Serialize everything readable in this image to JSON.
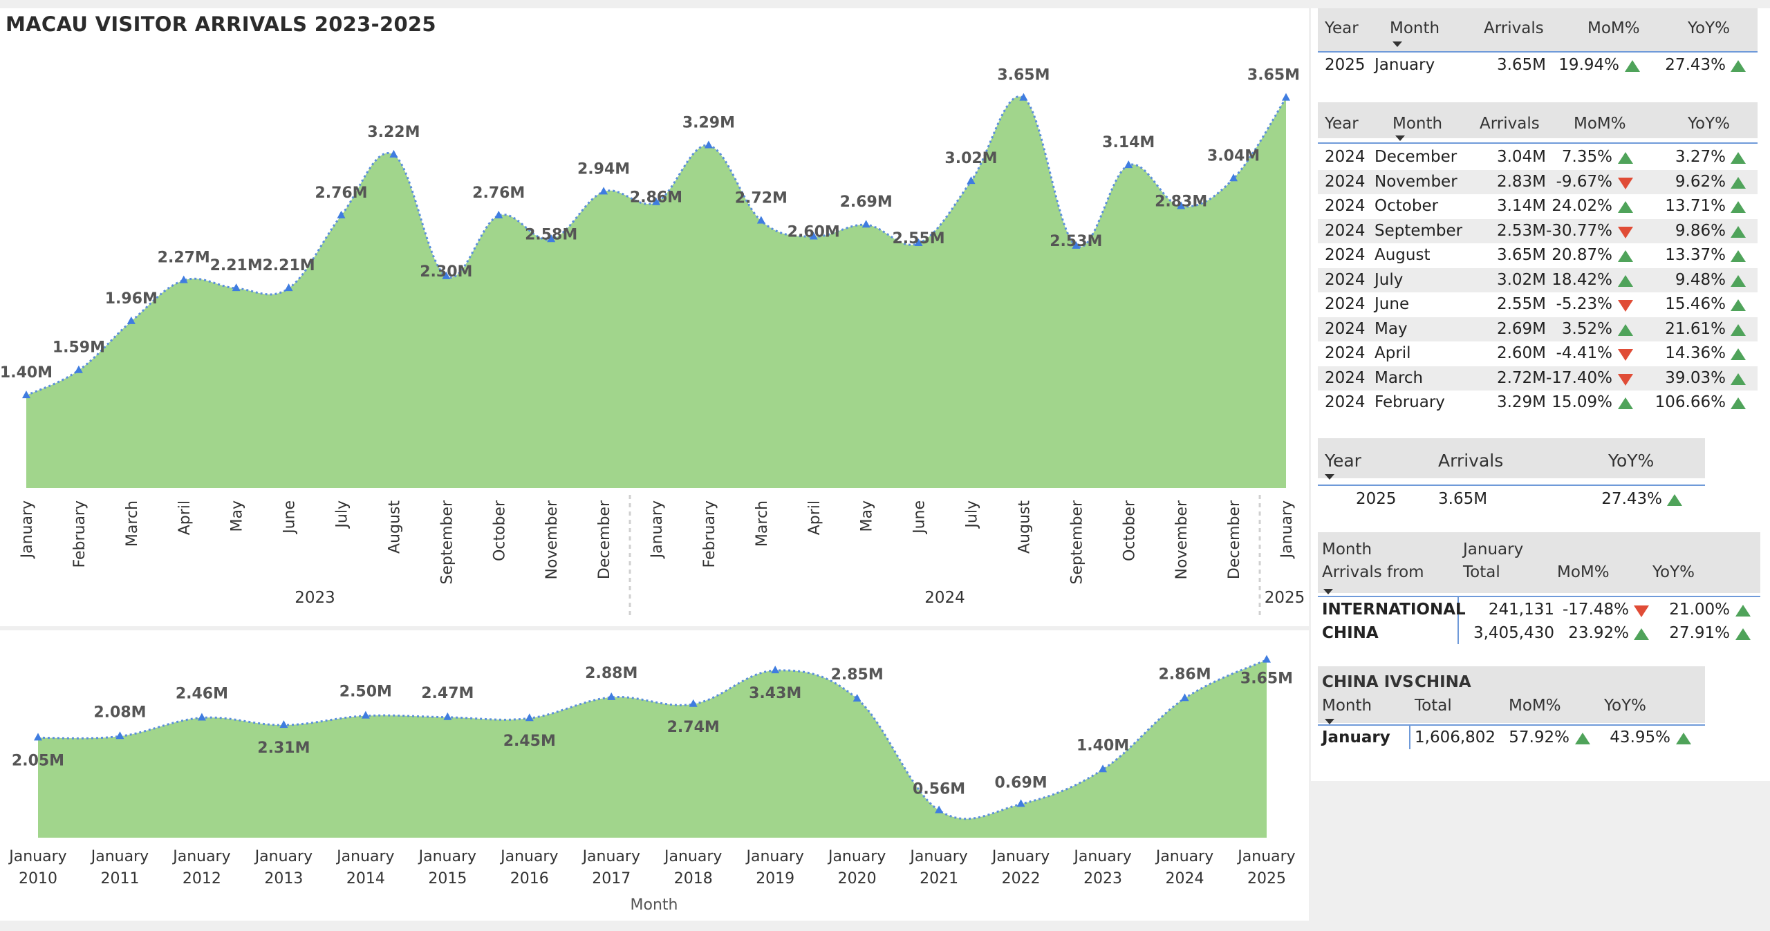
{
  "title": "MACAU VISITOR ARRIVALS 2023-2025",
  "colors": {
    "area": "#a1d58c",
    "line": "#5b8fdc",
    "marker": "#3f7ce0",
    "up": "#4fa35a",
    "down": "#e04c36",
    "header_rule": "#6f9ad9"
  },
  "chart_data": [
    {
      "type": "area",
      "title": "",
      "x": [
        "January",
        "February",
        "March",
        "April",
        "May",
        "June",
        "July",
        "August",
        "September",
        "October",
        "November",
        "December",
        "January",
        "February",
        "March",
        "April",
        "May",
        "June",
        "July",
        "August",
        "September",
        "October",
        "November",
        "December",
        "January"
      ],
      "year_groups": [
        {
          "label": "2023",
          "start": 0,
          "end": 11
        },
        {
          "label": "2024",
          "start": 12,
          "end": 23
        },
        {
          "label": "2025",
          "start": 24,
          "end": 24
        }
      ],
      "values": [
        1.4,
        1.59,
        1.96,
        2.27,
        2.21,
        2.21,
        2.76,
        3.22,
        2.3,
        2.76,
        2.58,
        2.94,
        2.86,
        3.29,
        2.72,
        2.6,
        2.69,
        2.55,
        3.02,
        3.65,
        2.53,
        3.14,
        2.83,
        3.04,
        3.65
      ],
      "data_labels": [
        "1.40M",
        "1.59M",
        "1.96M",
        "2.27M",
        "2.21M",
        "2.21M",
        "2.76M",
        "3.22M",
        "2.30M",
        "2.76M",
        "2.58M",
        "2.94M",
        "2.86M",
        "3.29M",
        "2.72M",
        "2.60M",
        "2.69M",
        "2.55M",
        "3.02M",
        "3.65M",
        "2.53M",
        "3.14M",
        "2.83M",
        "3.04M",
        "3.65M"
      ],
      "unit": "M",
      "ylim": [
        0.7,
        3.7
      ],
      "grid": false,
      "legend": "none"
    },
    {
      "type": "area",
      "title": "",
      "x": [
        "January 2010",
        "January 2011",
        "January 2012",
        "January 2013",
        "January 2014",
        "January 2015",
        "January 2016",
        "January 2017",
        "January 2018",
        "January 2019",
        "January 2020",
        "January 2021",
        "January 2022",
        "January 2023",
        "January 2024",
        "January 2025"
      ],
      "x_line1": [
        "January",
        "January",
        "January",
        "January",
        "January",
        "January",
        "January",
        "January",
        "January",
        "January",
        "January",
        "January",
        "January",
        "January",
        "January",
        "January"
      ],
      "x_line2": [
        "2010",
        "2011",
        "2012",
        "2013",
        "2014",
        "2015",
        "2016",
        "2017",
        "2018",
        "2019",
        "2020",
        "2021",
        "2022",
        "2023",
        "2024",
        "2025"
      ],
      "values": [
        2.05,
        2.08,
        2.46,
        2.31,
        2.5,
        2.47,
        2.45,
        2.88,
        2.74,
        3.43,
        2.85,
        0.56,
        0.69,
        1.4,
        2.86,
        3.65
      ],
      "data_labels": [
        "2.05M",
        "2.08M",
        "2.46M",
        "2.31M",
        "2.50M",
        "2.47M",
        "2.45M",
        "2.88M",
        "2.74M",
        "3.43M",
        "2.85M",
        "0.56M",
        "0.69M",
        "1.40M",
        "2.86M",
        "3.65M"
      ],
      "unit": "M",
      "xlabel": "Month",
      "ylim": [
        0,
        3.8
      ],
      "grid": false,
      "legend": "none"
    }
  ],
  "table_current": {
    "headers": {
      "year": "Year",
      "month": "Month",
      "arrivals": "Arrivals",
      "mom": "MoM%",
      "yoy": "YoY%"
    },
    "rows": [
      {
        "year": "2025",
        "month": "January",
        "arrivals": "3.65M",
        "mom": "19.94%",
        "mom_dir": "up",
        "yoy": "27.43%",
        "yoy_dir": "up"
      }
    ]
  },
  "table_2024": {
    "headers": {
      "year": "Year",
      "month": "Month",
      "arrivals": "Arrivals",
      "mom": "MoM%",
      "yoy": "YoY%"
    },
    "rows": [
      {
        "year": "2024",
        "month": "December",
        "arrivals": "3.04M",
        "mom": "7.35%",
        "mom_dir": "up",
        "yoy": "3.27%",
        "yoy_dir": "up"
      },
      {
        "year": "2024",
        "month": "November",
        "arrivals": "2.83M",
        "mom": "-9.67%",
        "mom_dir": "down",
        "yoy": "9.62%",
        "yoy_dir": "up"
      },
      {
        "year": "2024",
        "month": "October",
        "arrivals": "3.14M",
        "mom": "24.02%",
        "mom_dir": "up",
        "yoy": "13.71%",
        "yoy_dir": "up"
      },
      {
        "year": "2024",
        "month": "September",
        "arrivals": "2.53M",
        "mom": "-30.77%",
        "mom_dir": "down",
        "yoy": "9.86%",
        "yoy_dir": "up"
      },
      {
        "year": "2024",
        "month": "August",
        "arrivals": "3.65M",
        "mom": "20.87%",
        "mom_dir": "up",
        "yoy": "13.37%",
        "yoy_dir": "up"
      },
      {
        "year": "2024",
        "month": "July",
        "arrivals": "3.02M",
        "mom": "18.42%",
        "mom_dir": "up",
        "yoy": "9.48%",
        "yoy_dir": "up"
      },
      {
        "year": "2024",
        "month": "June",
        "arrivals": "2.55M",
        "mom": "-5.23%",
        "mom_dir": "down",
        "yoy": "15.46%",
        "yoy_dir": "up"
      },
      {
        "year": "2024",
        "month": "May",
        "arrivals": "2.69M",
        "mom": "3.52%",
        "mom_dir": "up",
        "yoy": "21.61%",
        "yoy_dir": "up"
      },
      {
        "year": "2024",
        "month": "April",
        "arrivals": "2.60M",
        "mom": "-4.41%",
        "mom_dir": "down",
        "yoy": "14.36%",
        "yoy_dir": "up"
      },
      {
        "year": "2024",
        "month": "March",
        "arrivals": "2.72M",
        "mom": "-17.40%",
        "mom_dir": "down",
        "yoy": "39.03%",
        "yoy_dir": "up"
      },
      {
        "year": "2024",
        "month": "February",
        "arrivals": "3.29M",
        "mom": "15.09%",
        "mom_dir": "up",
        "yoy": "106.66%",
        "yoy_dir": "up"
      }
    ]
  },
  "table_yearly": {
    "headers": {
      "year": "Year",
      "arrivals": "Arrivals",
      "yoy": "YoY%"
    },
    "rows": [
      {
        "year": "2025",
        "arrivals": "3.65M",
        "yoy": "27.43%",
        "yoy_dir": "up"
      }
    ]
  },
  "table_origin": {
    "headers": {
      "month": "Month",
      "arrivals_from": "Arrivals from",
      "january": "January",
      "total": "Total",
      "mom": "MoM%",
      "yoy": "YoY%"
    },
    "rows": [
      {
        "origin": "INTERNATIONAL",
        "total": "241,131",
        "mom": "-17.48%",
        "mom_dir": "down",
        "yoy": "21.00%",
        "yoy_dir": "up"
      },
      {
        "origin": "CHINA",
        "total": "3,405,430",
        "mom": "23.92%",
        "mom_dir": "up",
        "yoy": "27.91%",
        "yoy_dir": "up"
      }
    ]
  },
  "table_ivs": {
    "headers": {
      "china_ivs": "CHINA IVS",
      "month": "Month",
      "china": "CHINA",
      "total": "Total",
      "mom": "MoM%",
      "yoy": "YoY%"
    },
    "rows": [
      {
        "month": "January",
        "total": "1,606,802",
        "mom": "57.92%",
        "mom_dir": "up",
        "yoy": "43.95%",
        "yoy_dir": "up"
      }
    ]
  }
}
